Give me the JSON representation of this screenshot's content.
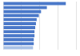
{
  "chart_data": {
    "type": "bar",
    "orientation": "horizontal",
    "categories": [
      null,
      null,
      null,
      null,
      null,
      null,
      null,
      null,
      null,
      null,
      null,
      null
    ],
    "values": [
      86,
      60,
      52,
      49,
      46,
      45,
      44,
      43,
      43,
      42,
      42,
      41
    ],
    "colors": [
      "#4a78c9",
      "#4a78c9",
      "#4a78c9",
      "#4a78c9",
      "#4a78c9",
      "#4a78c9",
      "#4a78c9",
      "#4a78c9",
      "#4a78c9",
      "#4a78c9",
      "#4a78c9",
      "#a9c1e6"
    ],
    "xlim": [
      0,
      100
    ],
    "xticks": [
      0,
      25,
      50,
      75,
      100
    ],
    "grid": true,
    "tick_labels": false
  }
}
